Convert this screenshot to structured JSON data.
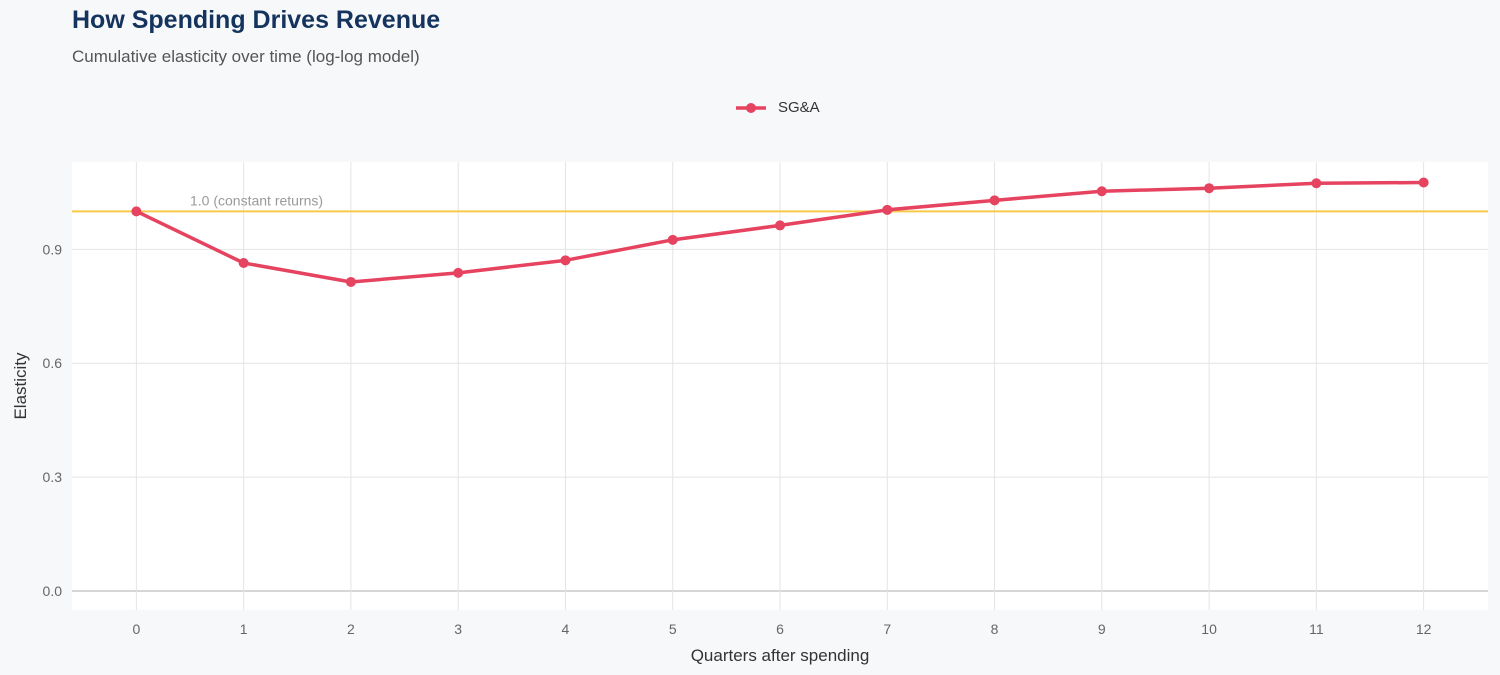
{
  "chart_data": {
    "type": "line",
    "title": "How Spending Drives Revenue",
    "subtitle": "Cumulative elasticity over time (log-log model)",
    "xlabel": "Quarters after spending",
    "ylabel": "Elasticity",
    "x": [
      0,
      1,
      2,
      3,
      4,
      5,
      6,
      7,
      8,
      9,
      10,
      11,
      12
    ],
    "series": [
      {
        "name": "SG&A",
        "color": "#e5435f",
        "values": [
          1.0,
          0.864,
          0.814,
          0.838,
          0.871,
          0.925,
          0.963,
          1.004,
          1.029,
          1.053,
          1.061,
          1.074,
          1.076
        ]
      }
    ],
    "xlim": [
      -0.6,
      12.6
    ],
    "ylim": [
      -0.05,
      1.13
    ],
    "yticks": [
      "0.0",
      "0.3",
      "0.6",
      "0.9"
    ],
    "ytick_values": [
      0,
      0.3,
      0.6,
      0.9
    ],
    "xticks": [
      "0",
      "1",
      "2",
      "3",
      "4",
      "5",
      "6",
      "7",
      "8",
      "9",
      "10",
      "11",
      "12"
    ],
    "reference_line": {
      "y": 1.0,
      "label": "1.0 (constant returns)",
      "color": "#f7c948"
    },
    "grid": true,
    "legend": "top-center",
    "background": "#f7f8fa",
    "panel_background": "#ffffff"
  }
}
